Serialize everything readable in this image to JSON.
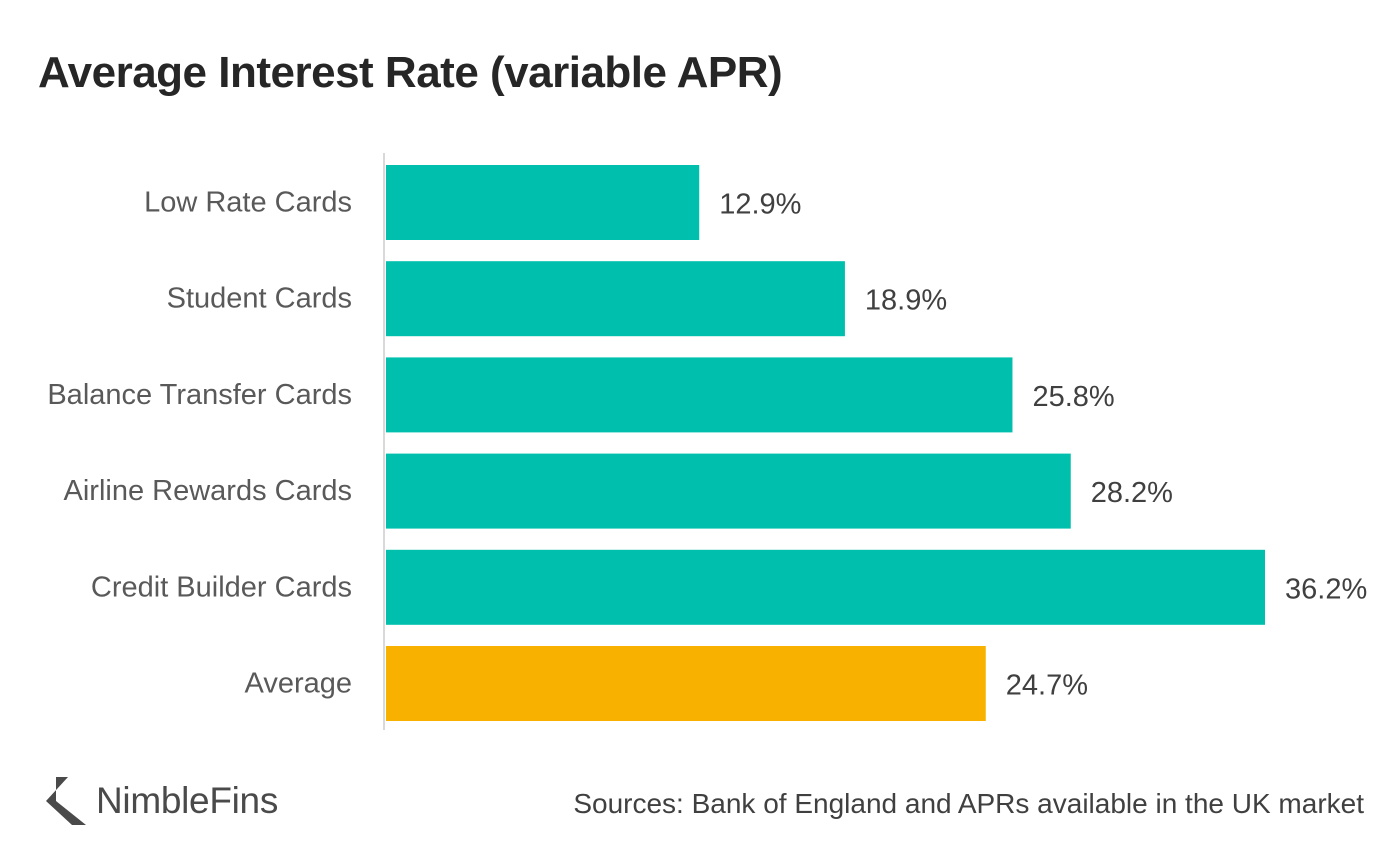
{
  "chart_data": {
    "type": "bar",
    "orientation": "horizontal",
    "title": "Average Interest Rate (variable APR)",
    "categories": [
      "Low Rate Cards",
      "Student Cards",
      "Balance Transfer Cards",
      "Airline Rewards Cards",
      "Credit Builder Cards",
      "Average"
    ],
    "values": [
      12.9,
      18.9,
      25.8,
      28.2,
      36.2,
      24.7
    ],
    "value_labels": [
      "12.9%",
      "18.9%",
      "25.8%",
      "28.2%",
      "36.2%",
      "24.7%"
    ],
    "value_unit": "%",
    "xlim": [
      0,
      36.2
    ],
    "grid": false,
    "legend": "none",
    "colors": {
      "default": "#00c0ad",
      "highlight": "#f9b100",
      "axis": "#d9d9d9"
    },
    "highlight_category": "Average"
  },
  "branding": {
    "logo_text": "NimbleFins",
    "logo_icon": "left-chevron-logo-icon"
  },
  "footer": {
    "source": "Sources: Bank of England and APRs available in the UK market"
  }
}
